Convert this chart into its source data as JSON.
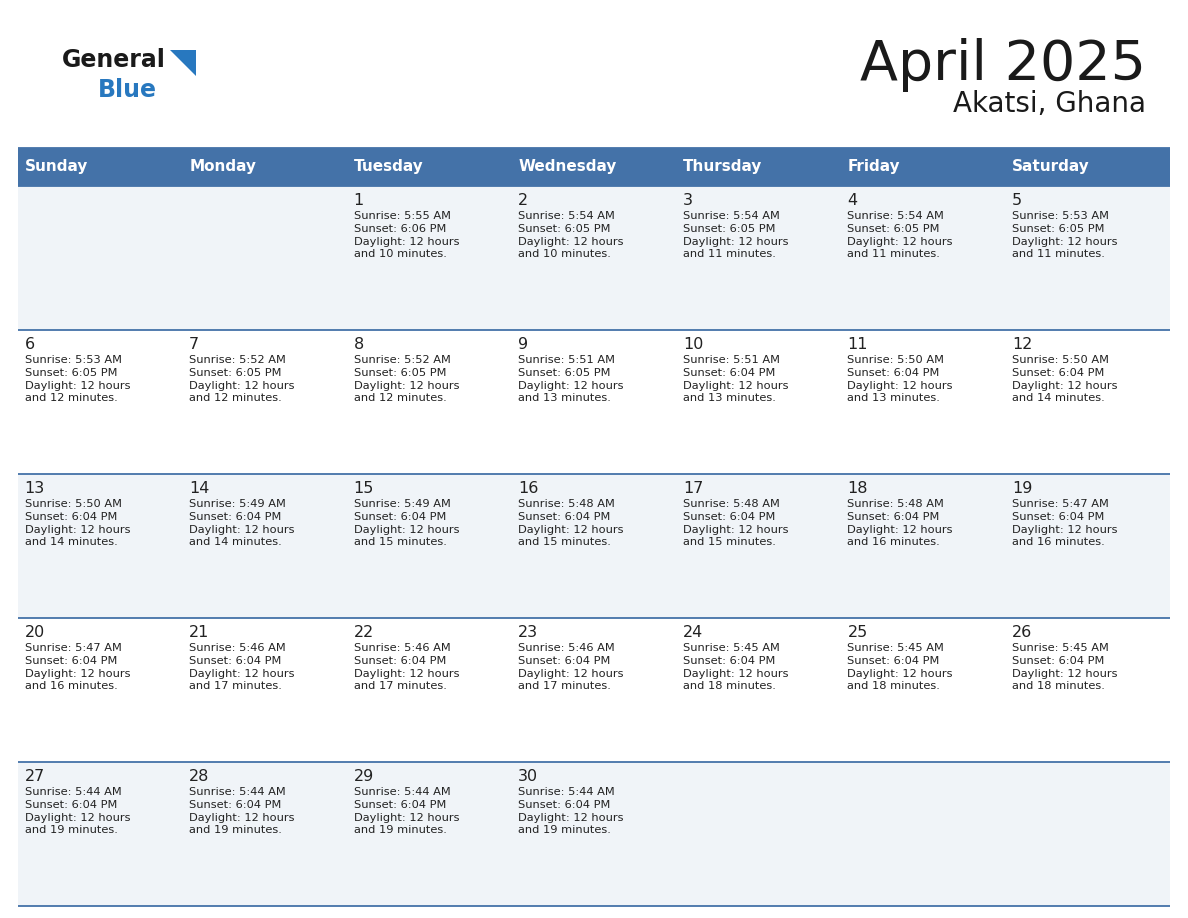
{
  "title": "April 2025",
  "subtitle": "Akatsi, Ghana",
  "days_of_week": [
    "Sunday",
    "Monday",
    "Tuesday",
    "Wednesday",
    "Thursday",
    "Friday",
    "Saturday"
  ],
  "header_bg": "#4472a8",
  "header_text": "#ffffff",
  "cell_bg_light": "#f0f4f8",
  "cell_bg_white": "#ffffff",
  "border_color": "#4472a8",
  "text_color": "#222222",
  "logo_black": "#1a1a1a",
  "logo_blue": "#2878bf",
  "triangle_blue": "#2878bf",
  "calendar": [
    [
      {
        "day": "",
        "sunrise": "",
        "sunset": "",
        "daylight": ""
      },
      {
        "day": "",
        "sunrise": "",
        "sunset": "",
        "daylight": ""
      },
      {
        "day": "1",
        "sunrise": "Sunrise: 5:55 AM",
        "sunset": "Sunset: 6:06 PM",
        "daylight": "Daylight: 12 hours\nand 10 minutes."
      },
      {
        "day": "2",
        "sunrise": "Sunrise: 5:54 AM",
        "sunset": "Sunset: 6:05 PM",
        "daylight": "Daylight: 12 hours\nand 10 minutes."
      },
      {
        "day": "3",
        "sunrise": "Sunrise: 5:54 AM",
        "sunset": "Sunset: 6:05 PM",
        "daylight": "Daylight: 12 hours\nand 11 minutes."
      },
      {
        "day": "4",
        "sunrise": "Sunrise: 5:54 AM",
        "sunset": "Sunset: 6:05 PM",
        "daylight": "Daylight: 12 hours\nand 11 minutes."
      },
      {
        "day": "5",
        "sunrise": "Sunrise: 5:53 AM",
        "sunset": "Sunset: 6:05 PM",
        "daylight": "Daylight: 12 hours\nand 11 minutes."
      }
    ],
    [
      {
        "day": "6",
        "sunrise": "Sunrise: 5:53 AM",
        "sunset": "Sunset: 6:05 PM",
        "daylight": "Daylight: 12 hours\nand 12 minutes."
      },
      {
        "day": "7",
        "sunrise": "Sunrise: 5:52 AM",
        "sunset": "Sunset: 6:05 PM",
        "daylight": "Daylight: 12 hours\nand 12 minutes."
      },
      {
        "day": "8",
        "sunrise": "Sunrise: 5:52 AM",
        "sunset": "Sunset: 6:05 PM",
        "daylight": "Daylight: 12 hours\nand 12 minutes."
      },
      {
        "day": "9",
        "sunrise": "Sunrise: 5:51 AM",
        "sunset": "Sunset: 6:05 PM",
        "daylight": "Daylight: 12 hours\nand 13 minutes."
      },
      {
        "day": "10",
        "sunrise": "Sunrise: 5:51 AM",
        "sunset": "Sunset: 6:04 PM",
        "daylight": "Daylight: 12 hours\nand 13 minutes."
      },
      {
        "day": "11",
        "sunrise": "Sunrise: 5:50 AM",
        "sunset": "Sunset: 6:04 PM",
        "daylight": "Daylight: 12 hours\nand 13 minutes."
      },
      {
        "day": "12",
        "sunrise": "Sunrise: 5:50 AM",
        "sunset": "Sunset: 6:04 PM",
        "daylight": "Daylight: 12 hours\nand 14 minutes."
      }
    ],
    [
      {
        "day": "13",
        "sunrise": "Sunrise: 5:50 AM",
        "sunset": "Sunset: 6:04 PM",
        "daylight": "Daylight: 12 hours\nand 14 minutes."
      },
      {
        "day": "14",
        "sunrise": "Sunrise: 5:49 AM",
        "sunset": "Sunset: 6:04 PM",
        "daylight": "Daylight: 12 hours\nand 14 minutes."
      },
      {
        "day": "15",
        "sunrise": "Sunrise: 5:49 AM",
        "sunset": "Sunset: 6:04 PM",
        "daylight": "Daylight: 12 hours\nand 15 minutes."
      },
      {
        "day": "16",
        "sunrise": "Sunrise: 5:48 AM",
        "sunset": "Sunset: 6:04 PM",
        "daylight": "Daylight: 12 hours\nand 15 minutes."
      },
      {
        "day": "17",
        "sunrise": "Sunrise: 5:48 AM",
        "sunset": "Sunset: 6:04 PM",
        "daylight": "Daylight: 12 hours\nand 15 minutes."
      },
      {
        "day": "18",
        "sunrise": "Sunrise: 5:48 AM",
        "sunset": "Sunset: 6:04 PM",
        "daylight": "Daylight: 12 hours\nand 16 minutes."
      },
      {
        "day": "19",
        "sunrise": "Sunrise: 5:47 AM",
        "sunset": "Sunset: 6:04 PM",
        "daylight": "Daylight: 12 hours\nand 16 minutes."
      }
    ],
    [
      {
        "day": "20",
        "sunrise": "Sunrise: 5:47 AM",
        "sunset": "Sunset: 6:04 PM",
        "daylight": "Daylight: 12 hours\nand 16 minutes."
      },
      {
        "day": "21",
        "sunrise": "Sunrise: 5:46 AM",
        "sunset": "Sunset: 6:04 PM",
        "daylight": "Daylight: 12 hours\nand 17 minutes."
      },
      {
        "day": "22",
        "sunrise": "Sunrise: 5:46 AM",
        "sunset": "Sunset: 6:04 PM",
        "daylight": "Daylight: 12 hours\nand 17 minutes."
      },
      {
        "day": "23",
        "sunrise": "Sunrise: 5:46 AM",
        "sunset": "Sunset: 6:04 PM",
        "daylight": "Daylight: 12 hours\nand 17 minutes."
      },
      {
        "day": "24",
        "sunrise": "Sunrise: 5:45 AM",
        "sunset": "Sunset: 6:04 PM",
        "daylight": "Daylight: 12 hours\nand 18 minutes."
      },
      {
        "day": "25",
        "sunrise": "Sunrise: 5:45 AM",
        "sunset": "Sunset: 6:04 PM",
        "daylight": "Daylight: 12 hours\nand 18 minutes."
      },
      {
        "day": "26",
        "sunrise": "Sunrise: 5:45 AM",
        "sunset": "Sunset: 6:04 PM",
        "daylight": "Daylight: 12 hours\nand 18 minutes."
      }
    ],
    [
      {
        "day": "27",
        "sunrise": "Sunrise: 5:44 AM",
        "sunset": "Sunset: 6:04 PM",
        "daylight": "Daylight: 12 hours\nand 19 minutes."
      },
      {
        "day": "28",
        "sunrise": "Sunrise: 5:44 AM",
        "sunset": "Sunset: 6:04 PM",
        "daylight": "Daylight: 12 hours\nand 19 minutes."
      },
      {
        "day": "29",
        "sunrise": "Sunrise: 5:44 AM",
        "sunset": "Sunset: 6:04 PM",
        "daylight": "Daylight: 12 hours\nand 19 minutes."
      },
      {
        "day": "30",
        "sunrise": "Sunrise: 5:44 AM",
        "sunset": "Sunset: 6:04 PM",
        "daylight": "Daylight: 12 hours\nand 19 minutes."
      },
      {
        "day": "",
        "sunrise": "",
        "sunset": "",
        "daylight": ""
      },
      {
        "day": "",
        "sunrise": "",
        "sunset": "",
        "daylight": ""
      },
      {
        "day": "",
        "sunrise": "",
        "sunset": "",
        "daylight": ""
      }
    ]
  ]
}
